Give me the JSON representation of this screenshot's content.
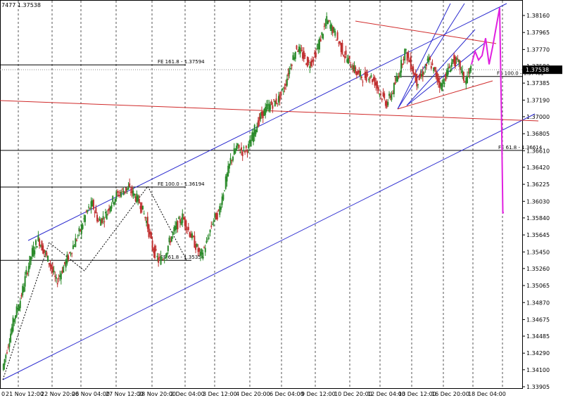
{
  "header": {
    "text": "7477 1.37538"
  },
  "chart_data": {
    "type": "candlestick",
    "grid": true,
    "ylim": [
      1.33905,
      1.3816
    ],
    "y_ticks": [
      "1.38160",
      "1.37965",
      "1.37770",
      "1.37580",
      "1.37385",
      "1.37190",
      "1.37000",
      "1.36805",
      "1.36610",
      "1.36420",
      "1.36225",
      "1.36030",
      "1.35840",
      "1.35645",
      "1.35450",
      "1.35260",
      "1.35065",
      "1.34870",
      "1.34675",
      "1.34485",
      "1.34290",
      "1.34100",
      "1.33905"
    ],
    "x_ticks": [
      "0",
      "21 Nov 12:00",
      "22 Nov 20:00",
      "26 Nov 04:00",
      "27 Nov 12:00",
      "28 Nov 20:00",
      "2 Dec 04:00",
      "3 Dec 12:00",
      "4 Dec 20:00",
      "6 Dec 04:00",
      "9 Dec 12:00",
      "10 Dec 20:00",
      "12 Dec 04:00",
      "13 Dec 12:00",
      "16 Dec 20:00",
      "18 Dec 04:00"
    ],
    "current_price": "1.37538",
    "fib_levels": [
      {
        "label": "FE 161.8 - 1.37594",
        "value": 1.37594
      },
      {
        "label": "FE 100.0 - 1.36194",
        "value": 1.36194
      },
      {
        "label": "FE 61.8 - 1.35354",
        "value": 1.35354
      },
      {
        "label": "FE 100.0 - 1.37461",
        "value": 1.37461
      },
      {
        "label": "FE 61.8 - 1.36614",
        "value": 1.36614
      }
    ],
    "price_path": [
      [
        0,
        1.341
      ],
      [
        1,
        1.344
      ],
      [
        2,
        1.347
      ],
      [
        3,
        1.349
      ],
      [
        4,
        1.352
      ],
      [
        5,
        1.3545
      ],
      [
        6,
        1.356
      ],
      [
        7,
        1.3545
      ],
      [
        8,
        1.353
      ],
      [
        9,
        1.351
      ],
      [
        10,
        1.3525
      ],
      [
        11,
        1.354
      ],
      [
        12,
        1.3555
      ],
      [
        13,
        1.357
      ],
      [
        14,
        1.359
      ],
      [
        15,
        1.36
      ],
      [
        16,
        1.358
      ],
      [
        17,
        1.3585
      ],
      [
        18,
        1.36
      ],
      [
        19,
        1.361
      ],
      [
        20,
        1.3615
      ],
      [
        21,
        1.3618
      ],
      [
        22,
        1.361
      ],
      [
        23,
        1.36
      ],
      [
        24,
        1.358
      ],
      [
        25,
        1.355
      ],
      [
        26,
        1.3535
      ],
      [
        27,
        1.354
      ],
      [
        28,
        1.356
      ],
      [
        29,
        1.3575
      ],
      [
        30,
        1.3585
      ],
      [
        31,
        1.357
      ],
      [
        32,
        1.3555
      ],
      [
        33,
        1.354
      ],
      [
        34,
        1.3555
      ],
      [
        35,
        1.358
      ],
      [
        36,
        1.359
      ],
      [
        37,
        1.362
      ],
      [
        38,
        1.365
      ],
      [
        39,
        1.3665
      ],
      [
        40,
        1.366
      ],
      [
        41,
        1.3665
      ],
      [
        42,
        1.3685
      ],
      [
        43,
        1.37
      ],
      [
        44,
        1.371
      ],
      [
        45,
        1.3715
      ],
      [
        46,
        1.372
      ],
      [
        47,
        1.3735
      ],
      [
        48,
        1.376
      ],
      [
        49,
        1.378
      ],
      [
        50,
        1.377
      ],
      [
        51,
        1.376
      ],
      [
        52,
        1.377
      ],
      [
        53,
        1.379
      ],
      [
        54,
        1.381
      ],
      [
        55,
        1.38
      ],
      [
        56,
        1.3785
      ],
      [
        57,
        1.377
      ],
      [
        58,
        1.376
      ],
      [
        59,
        1.375
      ],
      [
        60,
        1.3745
      ],
      [
        61,
        1.3748
      ],
      [
        62,
        1.374
      ],
      [
        63,
        1.3725
      ],
      [
        64,
        1.3715
      ],
      [
        65,
        1.373
      ],
      [
        66,
        1.375
      ],
      [
        67,
        1.3775
      ],
      [
        68,
        1.376
      ],
      [
        69,
        1.374
      ],
      [
        70,
        1.375
      ],
      [
        71,
        1.3765
      ],
      [
        72,
        1.375
      ],
      [
        73,
        1.3735
      ],
      [
        74,
        1.375
      ],
      [
        75,
        1.3765
      ],
      [
        76,
        1.376
      ],
      [
        77,
        1.374
      ],
      [
        78,
        1.3755
      ]
    ],
    "projection": [
      [
        0,
        1.376
      ],
      [
        1,
        1.3775
      ],
      [
        2,
        1.3765
      ],
      [
        3,
        1.377
      ],
      [
        4,
        1.379
      ],
      [
        5,
        1.376
      ],
      [
        6,
        1.378
      ],
      [
        7,
        1.3825
      ],
      [
        8,
        1.375
      ],
      [
        9,
        1.368
      ],
      [
        10,
        1.359
      ],
      [
        11,
        1.359
      ]
    ],
    "series_colors": {
      "up": "#2a8a2a",
      "down": "#c03030",
      "channel": "#2a2acf",
      "trend": "#d02a2a",
      "projection": "#e020e0",
      "fib": "#000000"
    }
  }
}
